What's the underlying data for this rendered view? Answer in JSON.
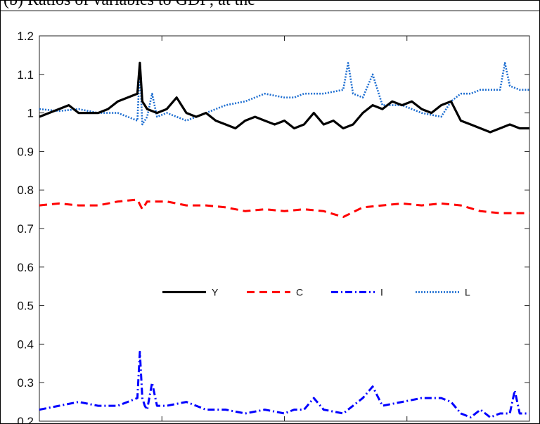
{
  "figure": {
    "caption": "(b) Ratios of variables to GDP; at the"
  },
  "chart_data": {
    "type": "line",
    "title": "",
    "xlabel": "",
    "ylabel": "",
    "x_range": [
      0,
      100
    ],
    "x_ticks": [
      0,
      25,
      50,
      75,
      100
    ],
    "ylim": [
      0.2,
      1.2
    ],
    "y_ticks": [
      0.2,
      0.3,
      0.4,
      0.5,
      0.6,
      0.7,
      0.8,
      0.9,
      1,
      1.1,
      1.2
    ],
    "y_tick_labels": [
      "0.2",
      "0.3",
      "0.4",
      "0.5",
      "0.6",
      "0.7",
      "0.8",
      "0.9",
      "1",
      "1.1",
      "1.2"
    ],
    "grid": false,
    "legend_position": "center",
    "series": [
      {
        "name": "Y",
        "color": "#000000",
        "style": "solid",
        "x": [
          0,
          2,
          4,
          6,
          8,
          10,
          12,
          14,
          16,
          18,
          20,
          20.5,
          21,
          21.5,
          22,
          24,
          26,
          28,
          30,
          32,
          34,
          36,
          38,
          40,
          42,
          44,
          46,
          48,
          50,
          52,
          54,
          56,
          58,
          60,
          62,
          64,
          66,
          68,
          70,
          72,
          74,
          76,
          78,
          80,
          82,
          84,
          86,
          88,
          90,
          92,
          94,
          96,
          98,
          100
        ],
        "y": [
          0.99,
          1.0,
          1.01,
          1.02,
          1.0,
          1.0,
          1.0,
          1.01,
          1.03,
          1.04,
          1.05,
          1.13,
          1.03,
          1.02,
          1.01,
          1.0,
          1.01,
          1.04,
          1.0,
          0.99,
          1.0,
          0.98,
          0.97,
          0.96,
          0.98,
          0.99,
          0.98,
          0.97,
          0.98,
          0.96,
          0.97,
          1.0,
          0.97,
          0.98,
          0.96,
          0.97,
          1.0,
          1.02,
          1.01,
          1.03,
          1.02,
          1.03,
          1.01,
          1.0,
          1.02,
          1.03,
          0.98,
          0.97,
          0.96,
          0.95,
          0.96,
          0.97,
          0.96,
          0.96
        ]
      },
      {
        "name": "C",
        "color": "#ff0000",
        "style": "dashed",
        "x": [
          0,
          4,
          8,
          12,
          16,
          20,
          21,
          22,
          26,
          30,
          34,
          38,
          42,
          46,
          50,
          54,
          58,
          62,
          66,
          70,
          74,
          78,
          82,
          86,
          90,
          94,
          98,
          100
        ],
        "y": [
          0.76,
          0.765,
          0.76,
          0.76,
          0.77,
          0.775,
          0.75,
          0.77,
          0.77,
          0.76,
          0.76,
          0.755,
          0.745,
          0.75,
          0.745,
          0.75,
          0.745,
          0.73,
          0.755,
          0.76,
          0.765,
          0.76,
          0.765,
          0.76,
          0.745,
          0.74,
          0.74,
          0.74
        ]
      },
      {
        "name": "I",
        "color": "#0000ff",
        "style": "dashdot",
        "x": [
          0,
          4,
          8,
          12,
          16,
          18,
          20,
          20.5,
          21,
          21.5,
          22,
          23,
          24,
          26,
          30,
          34,
          38,
          42,
          46,
          50,
          52,
          54,
          56,
          58,
          62,
          66,
          68,
          70,
          74,
          78,
          82,
          84,
          86,
          88,
          90,
          92,
          94,
          96,
          97,
          98,
          100
        ],
        "y": [
          0.23,
          0.24,
          0.25,
          0.24,
          0.24,
          0.25,
          0.26,
          0.38,
          0.26,
          0.24,
          0.23,
          0.3,
          0.24,
          0.24,
          0.25,
          0.23,
          0.23,
          0.22,
          0.23,
          0.22,
          0.23,
          0.23,
          0.26,
          0.23,
          0.22,
          0.26,
          0.29,
          0.24,
          0.25,
          0.26,
          0.26,
          0.25,
          0.22,
          0.21,
          0.23,
          0.21,
          0.22,
          0.22,
          0.28,
          0.22,
          0.22
        ]
      },
      {
        "name": "L",
        "color": "#1f6fd1",
        "style": "dotted",
        "x": [
          0,
          4,
          8,
          12,
          16,
          18,
          20,
          20.5,
          21,
          22,
          23,
          24,
          26,
          30,
          34,
          38,
          42,
          46,
          50,
          52,
          54,
          58,
          62,
          63,
          64,
          66,
          68,
          70,
          74,
          78,
          82,
          84,
          86,
          88,
          90,
          92,
          94,
          95,
          96,
          98,
          100
        ],
        "y": [
          1.01,
          1.005,
          1.01,
          1.0,
          1.0,
          0.99,
          0.98,
          1.12,
          0.97,
          0.99,
          1.05,
          0.99,
          1.0,
          0.98,
          1.0,
          1.02,
          1.03,
          1.05,
          1.04,
          1.04,
          1.05,
          1.05,
          1.06,
          1.13,
          1.05,
          1.04,
          1.1,
          1.02,
          1.02,
          1.0,
          0.99,
          1.03,
          1.05,
          1.05,
          1.06,
          1.06,
          1.06,
          1.13,
          1.07,
          1.06,
          1.06
        ]
      }
    ]
  }
}
